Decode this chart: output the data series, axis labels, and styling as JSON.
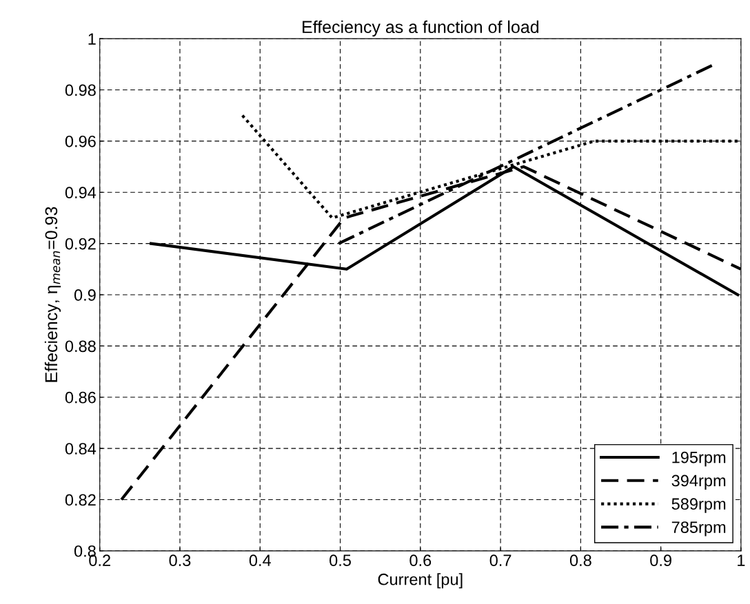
{
  "chart_data": {
    "type": "line",
    "title": "Effeciency as a function of load",
    "xlabel": "Current [pu]",
    "ylabel": "Effeciency, η$_{mean}$=0.93",
    "series": [
      {
        "name": "195rpm",
        "color": "#000000",
        "line_style": "solid",
        "x": [
          0.264,
          0.508,
          0.716,
          0.996
        ],
        "values": [
          0.92,
          0.91,
          0.95,
          0.9
        ]
      },
      {
        "name": "394rpm",
        "color": "#000000",
        "line_style": "dashed",
        "x": [
          0.227,
          0.505,
          0.729,
          1.0
        ],
        "values": [
          0.82,
          0.93,
          0.95,
          0.91
        ]
      },
      {
        "name": "589rpm",
        "color": "#000000",
        "line_style": "dotted",
        "x": [
          0.378,
          0.49,
          0.817,
          1.0
        ],
        "values": [
          0.97,
          0.93,
          0.96,
          0.96
        ]
      },
      {
        "name": "785rpm",
        "color": "#000000",
        "line_style": "dashdot",
        "x": [
          0.498,
          0.967
        ],
        "values": [
          0.92,
          0.99
        ]
      }
    ],
    "xlim": [
      0.2,
      1
    ],
    "xticks": [
      0.2,
      0.3,
      0.4,
      0.5,
      0.6,
      0.7,
      0.8,
      0.9,
      {
        "value": 1,
        "label": "1"
      }
    ],
    "ylim": [
      0.8,
      1
    ],
    "yticks": [
      0.8,
      0.82,
      0.84,
      0.86,
      0.88,
      0.9,
      0.92,
      0.94,
      0.96,
      0.98,
      {
        "value": 1,
        "label": "1"
      }
    ],
    "grid": true,
    "legend": "bottom right"
  }
}
